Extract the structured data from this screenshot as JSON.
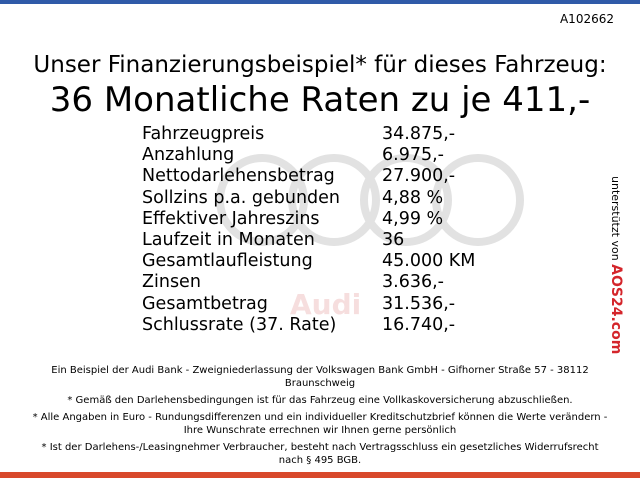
{
  "reference": "A102662",
  "headline": "Unser Finanzierungsbeispiel* für dieses Fahrzeug:",
  "subheadline": "36 Monatliche Raten zu je 411,-",
  "watermark": "Audi",
  "rows": [
    [
      "Fahrzeugpreis",
      "34.875,-"
    ],
    [
      "Anzahlung",
      "6.975,-"
    ],
    [
      "Nettodarlehensbetrag",
      "27.900,-"
    ],
    [
      "Sollzins p.a. gebunden",
      "4,88 %"
    ],
    [
      "Effektiver Jahreszins",
      "4,99 %"
    ],
    [
      "Laufzeit in Monaten",
      "36"
    ],
    [
      "Gesamtlaufleistung",
      "45.000 KM"
    ],
    [
      "Zinsen",
      "3.636,-"
    ],
    [
      "Gesamtbetrag",
      "31.536,-"
    ],
    [
      "Schlussrate (37. Rate)",
      "16.740,-"
    ]
  ],
  "footnotes": [
    "Ein Beispiel der Audi Bank - Zweigniederlassung der Volkswagen Bank GmbH - Gifhorner Straße 57 - 38112 Braunschweig",
    "* Gemäß den Darlehensbedingungen ist für das Fahrzeug eine Vollkaskoversicherung abzuschließen.",
    "* Alle Angaben in Euro - Rundungsdifferenzen und ein individueller Kreditschutzbrief können die Werte verändern - Ihre Wunschrate errechnen wir Ihnen gerne persönlich",
    "* Ist der Darlehens-/Leasingnehmer Verbraucher, besteht nach Vertragsschluss ein gesetzliches Widerrufsrecht nach § 495 BGB."
  ],
  "sidebar": {
    "text": "unterstützt von",
    "logo": "AOS24.com"
  }
}
